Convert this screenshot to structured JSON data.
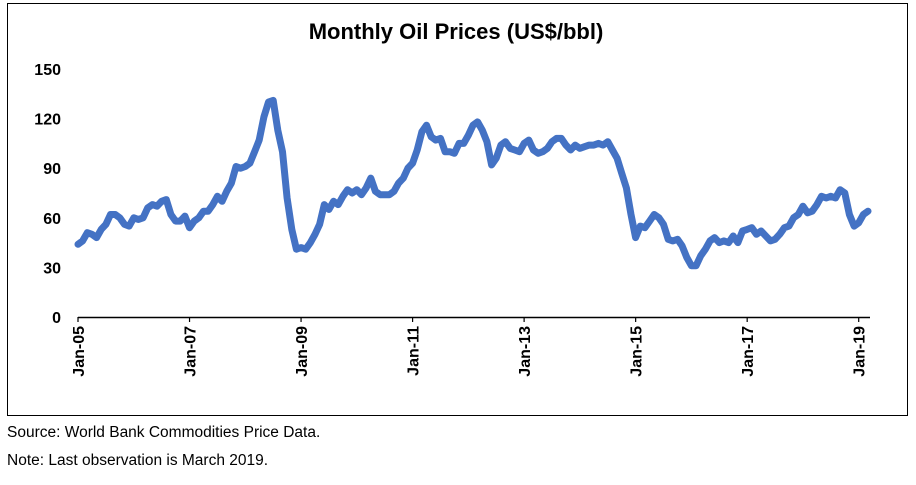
{
  "chart_data": {
    "type": "line",
    "title": "Monthly Oil Prices (US$/bbl)",
    "xlabel": "",
    "ylabel": "",
    "ylim": [
      0,
      150
    ],
    "yticks": [
      "0",
      "30",
      "60",
      "90",
      "120",
      "150"
    ],
    "xtick_labels": [
      "Jan-05",
      "Jan-07",
      "Jan-09",
      "Jan-11",
      "Jan-13",
      "Jan-15",
      "Jan-17",
      "Jan-19"
    ],
    "x_range": [
      "2005-01",
      "2019-03"
    ],
    "grid": false,
    "legend": "none",
    "line_color": "#4472C4",
    "series": [
      {
        "x": [
          "2005-01",
          "2005-02",
          "2005-03",
          "2005-04",
          "2005-05",
          "2005-06",
          "2005-07",
          "2005-08",
          "2005-09",
          "2005-10",
          "2005-11",
          "2005-12",
          "2006-01",
          "2006-02",
          "2006-03",
          "2006-04",
          "2006-05",
          "2006-06",
          "2006-07",
          "2006-08",
          "2006-09",
          "2006-10",
          "2006-11",
          "2006-12",
          "2007-01",
          "2007-02",
          "2007-03",
          "2007-04",
          "2007-05",
          "2007-06",
          "2007-07",
          "2007-08",
          "2007-09",
          "2007-10",
          "2007-11",
          "2007-12",
          "2008-01",
          "2008-02",
          "2008-03",
          "2008-04",
          "2008-05",
          "2008-06",
          "2008-07",
          "2008-08",
          "2008-09",
          "2008-10",
          "2008-11",
          "2008-12",
          "2009-01",
          "2009-02",
          "2009-03",
          "2009-04",
          "2009-05",
          "2009-06",
          "2009-07",
          "2009-08",
          "2009-09",
          "2009-10",
          "2009-11",
          "2009-12",
          "2010-01",
          "2010-02",
          "2010-03",
          "2010-04",
          "2010-05",
          "2010-06",
          "2010-07",
          "2010-08",
          "2010-09",
          "2010-10",
          "2010-11",
          "2010-12",
          "2011-01",
          "2011-02",
          "2011-03",
          "2011-04",
          "2011-05",
          "2011-06",
          "2011-07",
          "2011-08",
          "2011-09",
          "2011-10",
          "2011-11",
          "2011-12",
          "2012-01",
          "2012-02",
          "2012-03",
          "2012-04",
          "2012-05",
          "2012-06",
          "2012-07",
          "2012-08",
          "2012-09",
          "2012-10",
          "2012-11",
          "2012-12",
          "2013-01",
          "2013-02",
          "2013-03",
          "2013-04",
          "2013-05",
          "2013-06",
          "2013-07",
          "2013-08",
          "2013-09",
          "2013-10",
          "2013-11",
          "2013-12",
          "2014-01",
          "2014-02",
          "2014-03",
          "2014-04",
          "2014-05",
          "2014-06",
          "2014-07",
          "2014-08",
          "2014-09",
          "2014-10",
          "2014-11",
          "2014-12",
          "2015-01",
          "2015-02",
          "2015-03",
          "2015-04",
          "2015-05",
          "2015-06",
          "2015-07",
          "2015-08",
          "2015-09",
          "2015-10",
          "2015-11",
          "2015-12",
          "2016-01",
          "2016-02",
          "2016-03",
          "2016-04",
          "2016-05",
          "2016-06",
          "2016-07",
          "2016-08",
          "2016-09",
          "2016-10",
          "2016-11",
          "2016-12",
          "2017-01",
          "2017-02",
          "2017-03",
          "2017-04",
          "2017-05",
          "2017-06",
          "2017-07",
          "2017-08",
          "2017-09",
          "2017-10",
          "2017-11",
          "2017-12",
          "2018-01",
          "2018-02",
          "2018-03",
          "2018-04",
          "2018-05",
          "2018-06",
          "2018-07",
          "2018-08",
          "2018-09",
          "2018-10",
          "2018-11",
          "2018-12",
          "2019-01",
          "2019-02",
          "2019-03"
        ],
        "values": [
          44,
          46,
          51,
          50,
          48,
          53,
          56,
          62,
          62,
          60,
          56,
          55,
          60,
          59,
          60,
          66,
          68,
          67,
          70,
          71,
          62,
          58,
          58,
          61,
          54,
          58,
          60,
          64,
          64,
          68,
          73,
          70,
          76,
          81,
          91,
          90,
          91,
          93,
          100,
          107,
          121,
          130,
          131,
          113,
          100,
          72,
          53,
          41,
          42,
          41,
          45,
          50,
          56,
          68,
          65,
          70,
          68,
          73,
          77,
          75,
          77,
          74,
          78,
          84,
          76,
          74,
          74,
          74,
          76,
          81,
          84,
          90,
          93,
          101,
          112,
          116,
          109,
          107,
          108,
          100,
          100,
          99,
          105,
          105,
          110,
          116,
          118,
          113,
          106,
          92,
          96,
          104,
          106,
          102,
          101,
          100,
          105,
          107,
          101,
          99,
          100,
          102,
          106,
          108,
          108,
          104,
          101,
          104,
          102,
          103,
          104,
          104,
          105,
          104,
          106,
          101,
          96,
          87,
          78,
          62,
          48,
          55,
          54,
          58,
          62,
          60,
          56,
          47,
          46,
          47,
          43,
          36,
          31,
          31,
          37,
          41,
          46,
          48,
          45,
          46,
          45,
          49,
          45,
          52,
          53,
          54,
          50,
          52,
          49,
          46,
          47,
          50,
          54,
          55,
          60,
          62,
          67,
          63,
          64,
          68,
          73,
          72,
          73,
          72,
          77,
          75,
          62,
          55,
          57,
          62,
          64
        ]
      }
    ]
  },
  "notes": {
    "source": "Source: World Bank Commodities Price Data.",
    "last_observation": "Note: Last observation is March 2019."
  }
}
